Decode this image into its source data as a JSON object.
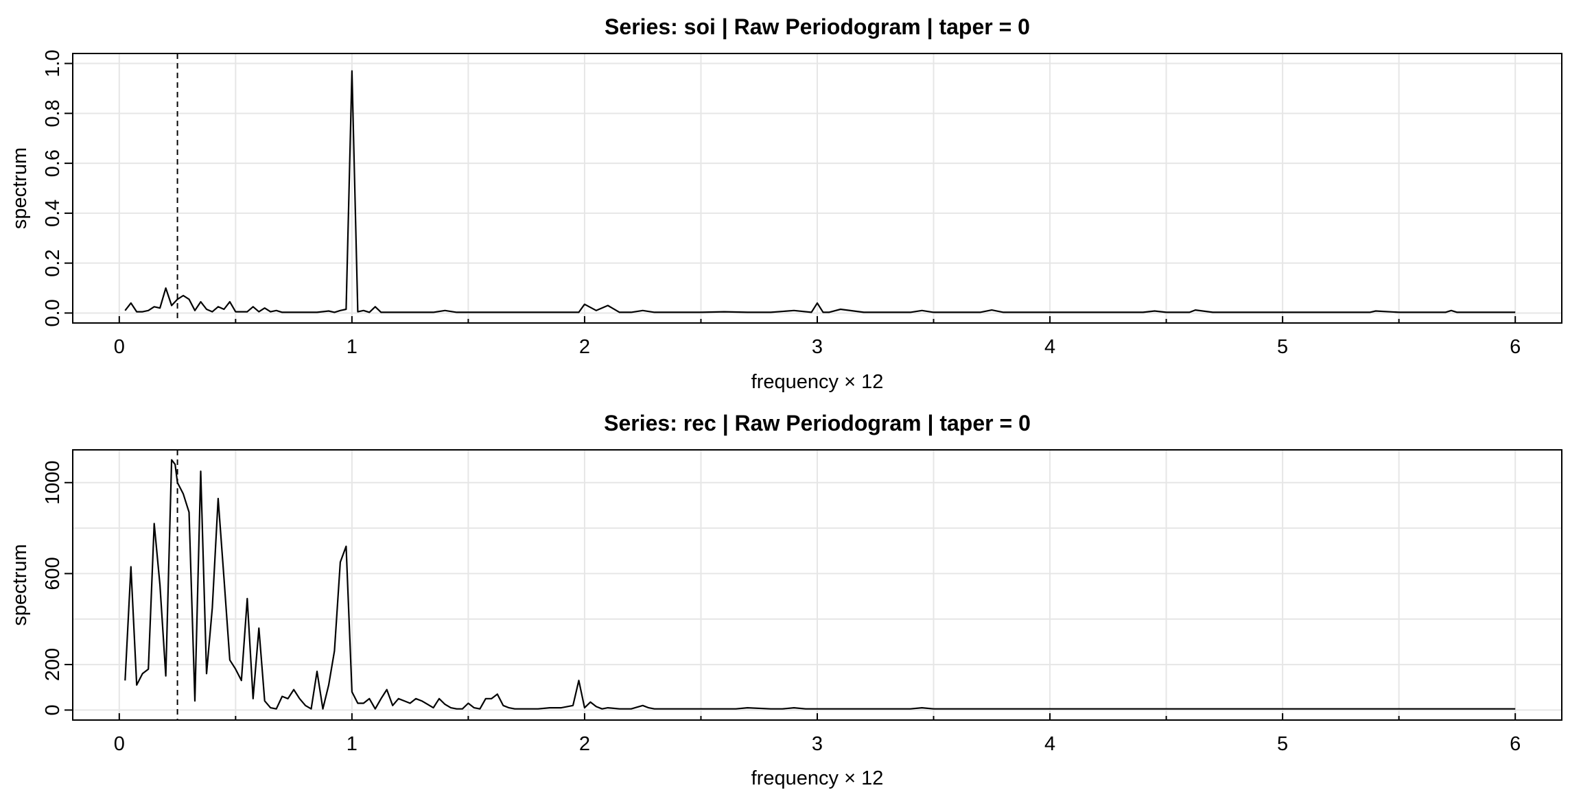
{
  "chart_data": [
    {
      "type": "line",
      "title": "Series: soi  |  Raw Periodogram  |  taper = 0",
      "xlabel": "frequency × 12",
      "ylabel": "spectrum",
      "xlim": [
        -0.2,
        6.2
      ],
      "ylim": [
        -0.04,
        1.04
      ],
      "xticks": [
        0,
        1,
        2,
        3,
        4,
        5,
        6
      ],
      "xtick_labels": [
        "0",
        "1",
        "2",
        "3",
        "4",
        "5",
        "6"
      ],
      "yticks": [
        0,
        0.2,
        0.4,
        0.6,
        0.8,
        1
      ],
      "ytick_labels": [
        "0.0",
        "0.2",
        "0.4",
        "0.6",
        "0.8",
        "1.0"
      ],
      "grid": true,
      "vline": 0.25,
      "series": [
        {
          "x": [
            0.025,
            0.05,
            0.075,
            0.1,
            0.125,
            0.15,
            0.175,
            0.2,
            0.225,
            0.25,
            0.275,
            0.3,
            0.325,
            0.35,
            0.375,
            0.4,
            0.425,
            0.45,
            0.475,
            0.5,
            0.55,
            0.575,
            0.6,
            0.625,
            0.65,
            0.675,
            0.7,
            0.75,
            0.8,
            0.85,
            0.9,
            0.925,
            0.95,
            0.975,
            1.0,
            1.025,
            1.05,
            1.075,
            1.1,
            1.125,
            1.15,
            1.2,
            1.25,
            1.3,
            1.35,
            1.4,
            1.45,
            1.5,
            1.6,
            1.7,
            1.75,
            1.8,
            1.9,
            1.975,
            2.0,
            2.05,
            2.1,
            2.15,
            2.2,
            2.25,
            2.3,
            2.4,
            2.5,
            2.6,
            2.7,
            2.8,
            2.9,
            2.975,
            3.0,
            3.025,
            3.05,
            3.1,
            3.2,
            3.3,
            3.4,
            3.45,
            3.5,
            3.6,
            3.7,
            3.75,
            3.8,
            3.9,
            4.0,
            4.1,
            4.2,
            4.3,
            4.4,
            4.45,
            4.5,
            4.6,
            4.625,
            4.7,
            4.8,
            4.9,
            5.0,
            5.1,
            5.2,
            5.3,
            5.375,
            5.4,
            5.5,
            5.6,
            5.7,
            5.725,
            5.75,
            5.8,
            5.9,
            6.0
          ],
          "values": [
            0.01,
            0.04,
            0.005,
            0.005,
            0.01,
            0.025,
            0.02,
            0.1,
            0.03,
            0.055,
            0.07,
            0.055,
            0.01,
            0.045,
            0.015,
            0.005,
            0.025,
            0.015,
            0.045,
            0.005,
            0.005,
            0.025,
            0.005,
            0.02,
            0.005,
            0.01,
            0.003,
            0.003,
            0.003,
            0.003,
            0.008,
            0.003,
            0.01,
            0.015,
            0.97,
            0.005,
            0.01,
            0.003,
            0.025,
            0.003,
            0.003,
            0.003,
            0.003,
            0.003,
            0.003,
            0.01,
            0.003,
            0.003,
            0.003,
            0.003,
            0.003,
            0.003,
            0.003,
            0.003,
            0.035,
            0.01,
            0.03,
            0.003,
            0.003,
            0.01,
            0.003,
            0.003,
            0.003,
            0.005,
            0.003,
            0.003,
            0.01,
            0.003,
            0.04,
            0.003,
            0.003,
            0.015,
            0.003,
            0.003,
            0.003,
            0.01,
            0.003,
            0.003,
            0.003,
            0.012,
            0.003,
            0.003,
            0.003,
            0.003,
            0.003,
            0.003,
            0.003,
            0.008,
            0.003,
            0.003,
            0.012,
            0.003,
            0.003,
            0.003,
            0.003,
            0.003,
            0.003,
            0.003,
            0.003,
            0.008,
            0.003,
            0.003,
            0.003,
            0.01,
            0.003,
            0.003,
            0.003,
            0.003
          ]
        }
      ]
    },
    {
      "type": "line",
      "title": "Series: rec  |  Raw Periodogram  |  taper = 0",
      "xlabel": "frequency × 12",
      "ylabel": "spectrum",
      "xlim": [
        -0.2,
        6.2
      ],
      "ylim": [
        -44,
        1144
      ],
      "xticks": [
        0,
        1,
        2,
        3,
        4,
        5,
        6
      ],
      "xtick_labels": [
        "0",
        "1",
        "2",
        "3",
        "4",
        "5",
        "6"
      ],
      "yticks": [
        0,
        200,
        600,
        1000
      ],
      "ytick_labels": [
        "0",
        "200",
        "600",
        "1000"
      ],
      "extra_gridlines": [
        400,
        800
      ],
      "grid": true,
      "vline": 0.25,
      "series": [
        {
          "x": [
            0.025,
            0.05,
            0.075,
            0.1,
            0.125,
            0.15,
            0.175,
            0.2,
            0.225,
            0.24,
            0.25,
            0.275,
            0.3,
            0.325,
            0.35,
            0.375,
            0.4,
            0.425,
            0.45,
            0.475,
            0.5,
            0.525,
            0.55,
            0.575,
            0.6,
            0.625,
            0.65,
            0.675,
            0.7,
            0.725,
            0.75,
            0.775,
            0.8,
            0.825,
            0.85,
            0.875,
            0.9,
            0.925,
            0.95,
            0.975,
            1.0,
            1.025,
            1.05,
            1.075,
            1.1,
            1.125,
            1.15,
            1.175,
            1.2,
            1.225,
            1.25,
            1.275,
            1.3,
            1.325,
            1.35,
            1.375,
            1.4,
            1.425,
            1.45,
            1.475,
            1.5,
            1.525,
            1.55,
            1.575,
            1.6,
            1.625,
            1.65,
            1.675,
            1.7,
            1.725,
            1.75,
            1.8,
            1.85,
            1.9,
            1.95,
            1.975,
            2.0,
            2.025,
            2.05,
            2.075,
            2.1,
            2.15,
            2.2,
            2.25,
            2.275,
            2.3,
            2.35,
            2.4,
            2.45,
            2.5,
            2.6,
            2.65,
            2.7,
            2.8,
            2.85,
            2.9,
            2.95,
            3.0,
            3.2,
            3.4,
            3.45,
            3.5,
            3.6,
            3.8,
            3.9,
            4.0,
            4.1,
            4.2,
            4.3,
            4.4,
            4.6,
            4.8,
            5.0,
            5.2,
            5.4,
            5.6,
            5.8,
            6.0
          ],
          "values": [
            130,
            630,
            110,
            160,
            180,
            820,
            550,
            150,
            1100,
            1080,
            1000,
            950,
            870,
            40,
            1050,
            160,
            450,
            930,
            580,
            220,
            180,
            130,
            490,
            50,
            360,
            40,
            10,
            5,
            60,
            50,
            90,
            50,
            20,
            5,
            170,
            5,
            110,
            260,
            650,
            720,
            80,
            30,
            30,
            50,
            5,
            50,
            90,
            20,
            50,
            40,
            30,
            50,
            40,
            25,
            10,
            50,
            25,
            10,
            5,
            5,
            30,
            10,
            5,
            50,
            50,
            70,
            20,
            10,
            5,
            5,
            5,
            5,
            10,
            10,
            20,
            130,
            10,
            35,
            15,
            5,
            10,
            5,
            5,
            20,
            10,
            5,
            5,
            5,
            5,
            5,
            5,
            5,
            10,
            5,
            5,
            10,
            5,
            5,
            5,
            5,
            10,
            5,
            5,
            5,
            5,
            5,
            5,
            5,
            5,
            5,
            5,
            5,
            5,
            5,
            5,
            5,
            5,
            5
          ]
        }
      ]
    }
  ]
}
